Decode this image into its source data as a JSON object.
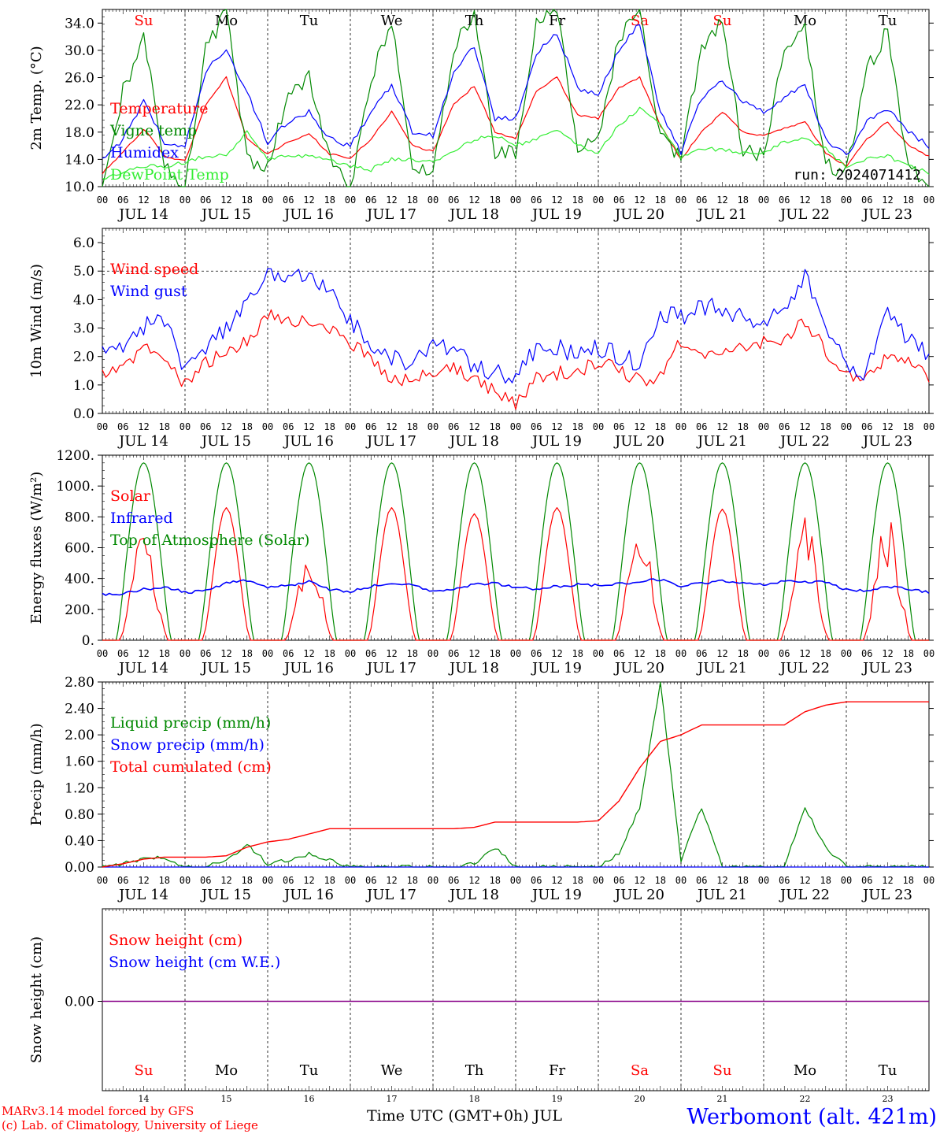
{
  "footer": {
    "credit_line1": "MARv3.14 model forced by GFS",
    "credit_line2": "(c) Lab. of Climatology, University of Liege",
    "xlabel": "Time UTC (GMT+0h) JUL",
    "station": "Werbomont (alt. 421m)"
  },
  "colors": {
    "red": "#ff0000",
    "green": "#008800",
    "blue": "#0000ff",
    "lightgreen": "#33ee33",
    "purple": "#880088"
  },
  "chart_data": [
    {
      "type": "line",
      "id": "temp",
      "ylabel": "2m Temp. (°C)",
      "ylim": [
        10,
        36
      ],
      "yticks": [
        "10.0",
        "14.0",
        "18.0",
        "22.0",
        "26.0",
        "30.0",
        "34.0"
      ],
      "annotation": "run: 2024071412",
      "day_labels": [
        "JUL 14",
        "JUL 15",
        "JUL 16",
        "JUL 17",
        "JUL 18",
        "JUL 19",
        "JUL 20",
        "JUL 21",
        "JUL 22",
        "JUL 23"
      ],
      "weekday_labels": [
        "Su",
        "Mo",
        "Tu",
        "We",
        "Th",
        "Fr",
        "Sa",
        "Su",
        "Mo",
        "Tu"
      ],
      "hour_labels": [
        "00",
        "06",
        "12",
        "18"
      ],
      "x_hours": [
        0,
        6,
        12,
        18,
        24,
        30,
        36,
        42,
        48,
        54,
        60,
        66,
        72,
        78,
        84,
        90,
        96,
        102,
        108,
        114,
        120,
        126,
        132,
        138,
        144,
        150,
        156,
        162,
        168,
        174,
        180,
        186,
        192,
        198,
        204,
        210,
        216,
        222,
        228,
        234,
        240
      ],
      "series": [
        {
          "name": "Temperature",
          "color": "#ff0000",
          "values": [
            12.0,
            15.0,
            18.5,
            14.5,
            13.8,
            22.0,
            26.0,
            17.0,
            14.8,
            16.5,
            17.8,
            14.8,
            14.2,
            17.0,
            21.0,
            16.0,
            15.2,
            22.0,
            24.8,
            18.0,
            17.0,
            24.0,
            26.0,
            20.5,
            20.0,
            24.5,
            26.0,
            19.0,
            14.0,
            18.0,
            21.0,
            18.0,
            17.5,
            18.5,
            19.5,
            15.0,
            13.0,
            17.0,
            19.5,
            16.0,
            14.5
          ]
        },
        {
          "name": "Vigne temp",
          "color": "#008800",
          "values": [
            10.0,
            24.0,
            32.0,
            13.0,
            10.0,
            30.0,
            36.0,
            14.0,
            13.0,
            24.0,
            26.0,
            14.0,
            10.0,
            26.0,
            34.0,
            13.0,
            12.0,
            30.0,
            36.0,
            15.0,
            15.0,
            34.0,
            36.0,
            16.0,
            17.0,
            32.0,
            36.0,
            18.0,
            14.0,
            30.0,
            34.0,
            15.0,
            15.0,
            30.0,
            33.0,
            13.0,
            12.0,
            27.0,
            33.0,
            13.0,
            10.5
          ]
        },
        {
          "name": "Humidex",
          "color": "#0000ff",
          "values": [
            13.8,
            17.0,
            22.5,
            16.5,
            16.0,
            27.0,
            30.0,
            24.0,
            16.5,
            19.5,
            21.0,
            17.0,
            16.0,
            21.0,
            25.0,
            18.0,
            17.5,
            27.0,
            30.5,
            20.0,
            20.0,
            29.5,
            32.5,
            24.5,
            23.5,
            30.0,
            34.0,
            21.0,
            15.0,
            23.0,
            25.5,
            22.5,
            21.0,
            23.0,
            25.0,
            17.0,
            14.5,
            19.5,
            21.5,
            18.0,
            16.0
          ]
        },
        {
          "name": "DewPoint Temp",
          "color": "#33ee33",
          "values": [
            11.0,
            12.0,
            13.0,
            13.0,
            13.5,
            14.5,
            14.5,
            18.0,
            14.0,
            14.5,
            14.5,
            14.0,
            13.0,
            12.5,
            14.0,
            14.0,
            13.5,
            15.0,
            17.0,
            17.5,
            16.0,
            17.0,
            18.5,
            16.0,
            15.0,
            19.0,
            21.5,
            19.0,
            14.2,
            15.5,
            15.5,
            14.8,
            15.0,
            16.5,
            17.0,
            15.5,
            13.0,
            14.0,
            14.5,
            13.0,
            12.0
          ]
        }
      ]
    },
    {
      "type": "line",
      "id": "wind",
      "ylabel": "10m Wind (m/s)",
      "ylim": [
        0,
        6.5
      ],
      "yticks": [
        "0.0",
        "1.0",
        "2.0",
        "3.0",
        "4.0",
        "5.0",
        "6.0"
      ],
      "day_labels": [
        "JUL 14",
        "JUL 15",
        "JUL 16",
        "JUL 17",
        "JUL 18",
        "JUL 19",
        "JUL 20",
        "JUL 21",
        "JUL 22",
        "JUL 23"
      ],
      "hour_labels": [
        "00",
        "06",
        "12",
        "18"
      ],
      "x_hours": [
        0,
        6,
        12,
        18,
        24,
        30,
        36,
        42,
        48,
        54,
        60,
        66,
        72,
        78,
        84,
        90,
        96,
        102,
        108,
        114,
        120,
        126,
        132,
        138,
        144,
        150,
        156,
        162,
        168,
        174,
        180,
        186,
        192,
        198,
        204,
        210,
        216,
        222,
        228,
        234,
        240
      ],
      "series": [
        {
          "name": "Wind speed",
          "color": "#ff0000",
          "values": [
            1.4,
            1.6,
            2.3,
            1.8,
            1.0,
            1.8,
            2.1,
            2.5,
            3.5,
            3.2,
            3.3,
            3.0,
            2.4,
            2.0,
            1.1,
            1.3,
            1.5,
            1.6,
            1.2,
            0.8,
            0.3,
            1.2,
            1.4,
            1.5,
            1.8,
            1.6,
            1.1,
            1.3,
            2.6,
            2.2,
            2.0,
            2.3,
            2.5,
            2.6,
            3.2,
            2.2,
            1.3,
            1.2,
            2.1,
            1.8,
            1.2
          ]
        },
        {
          "name": "Wind gust",
          "color": "#0000ff",
          "values": [
            2.1,
            2.3,
            3.1,
            3.2,
            1.5,
            2.4,
            3.0,
            3.9,
            4.9,
            4.7,
            4.8,
            4.2,
            3.3,
            2.3,
            1.9,
            1.8,
            2.5,
            2.2,
            1.6,
            1.4,
            1.4,
            2.2,
            2.3,
            2.0,
            2.3,
            2.0,
            1.8,
            3.6,
            3.4,
            3.8,
            3.7,
            3.4,
            3.1,
            3.8,
            4.8,
            3.1,
            1.6,
            1.5,
            3.7,
            2.6,
            2.0
          ]
        }
      ]
    },
    {
      "type": "line",
      "id": "energy",
      "ylabel": "Energy fluxes (W/m²)",
      "ylim": [
        0,
        1200
      ],
      "yticks": [
        "0.",
        "200.",
        "400.",
        "600.",
        "800.",
        "1000.",
        "1200."
      ],
      "day_labels": [
        "JUL 14",
        "JUL 15",
        "JUL 16",
        "JUL 17",
        "JUL 18",
        "JUL 19",
        "JUL 20",
        "JUL 21",
        "JUL 22",
        "JUL 23"
      ],
      "hour_labels": [
        "00",
        "06",
        "12",
        "18"
      ],
      "solar_peaks_wm2": [
        760,
        860,
        600,
        860,
        820,
        860,
        760,
        850,
        820,
        830
      ],
      "toa_peak_wm2": 1150,
      "series": [
        {
          "name": "Solar",
          "color": "#ff0000"
        },
        {
          "name": "Infrared",
          "color": "#0000ff",
          "values": [
            295,
            300,
            330,
            345,
            310,
            320,
            370,
            390,
            340,
            355,
            380,
            330,
            315,
            350,
            370,
            360,
            320,
            330,
            360,
            370,
            340,
            335,
            350,
            360,
            355,
            365,
            380,
            395,
            350,
            370,
            385,
            375,
            360,
            385,
            380,
            375,
            330,
            320,
            350,
            330,
            310
          ]
        },
        {
          "name": "Top of Atmosphere (Solar)",
          "color": "#008800"
        }
      ]
    },
    {
      "type": "line",
      "id": "precip",
      "ylabel": "Precip (mm/h)",
      "ylim": [
        0,
        2.8
      ],
      "yticks": [
        "0.00",
        "0.40",
        "0.80",
        "1.20",
        "1.60",
        "2.00",
        "2.40",
        "2.80"
      ],
      "day_labels": [
        "JUL 14",
        "JUL 15",
        "JUL 16",
        "JUL 17",
        "JUL 18",
        "JUL 19",
        "JUL 20",
        "JUL 21",
        "JUL 22",
        "JUL 23"
      ],
      "hour_labels": [
        "00",
        "06",
        "12",
        "18"
      ],
      "x_hours": [
        0,
        6,
        12,
        18,
        24,
        30,
        36,
        42,
        48,
        54,
        60,
        66,
        72,
        78,
        84,
        90,
        96,
        102,
        108,
        114,
        120,
        126,
        132,
        138,
        144,
        150,
        156,
        162,
        168,
        174,
        180,
        186,
        192,
        198,
        204,
        210,
        216,
        222,
        228,
        234,
        240
      ],
      "series": [
        {
          "name": "Liquid precip (mm/h)",
          "color": "#008800",
          "values": [
            0,
            0.05,
            0.12,
            0.15,
            0,
            0,
            0.1,
            0.35,
            0.05,
            0.1,
            0.2,
            0.1,
            0,
            0,
            0,
            0,
            0,
            0,
            0.05,
            0.3,
            0,
            0,
            0,
            0,
            0,
            0.2,
            0.9,
            2.8,
            0.1,
            0.9,
            0,
            0,
            0,
            0,
            0.9,
            0.3,
            0,
            0,
            0,
            0,
            0
          ]
        },
        {
          "name": "Snow precip (mm/h)",
          "color": "#0000ff",
          "values": [
            0,
            0,
            0,
            0,
            0,
            0,
            0,
            0,
            0,
            0,
            0,
            0,
            0,
            0,
            0,
            0,
            0,
            0,
            0,
            0,
            0,
            0,
            0,
            0,
            0,
            0,
            0,
            0,
            0,
            0,
            0,
            0,
            0,
            0,
            0,
            0,
            0,
            0,
            0,
            0,
            0
          ]
        },
        {
          "name": "Total cumulated (cm)",
          "color": "#ff0000",
          "values": [
            0,
            0.05,
            0.12,
            0.15,
            0.15,
            0.15,
            0.17,
            0.3,
            0.38,
            0.42,
            0.5,
            0.58,
            0.58,
            0.58,
            0.58,
            0.58,
            0.58,
            0.58,
            0.6,
            0.68,
            0.68,
            0.68,
            0.68,
            0.68,
            0.7,
            1.0,
            1.5,
            1.9,
            2.0,
            2.15,
            2.15,
            2.15,
            2.15,
            2.15,
            2.35,
            2.45,
            2.5,
            2.5,
            2.5,
            2.5,
            2.5
          ]
        }
      ]
    },
    {
      "type": "line",
      "id": "snow",
      "ylabel": "Snow height (cm)",
      "yticks": [
        "0.00"
      ],
      "weekday_labels": [
        "Su",
        "Mo",
        "Tu",
        "We",
        "Th",
        "Fr",
        "Sa",
        "Su",
        "Mo",
        "Tu"
      ],
      "day_numbers": [
        "14",
        "15",
        "16",
        "17",
        "18",
        "19",
        "20",
        "21",
        "22",
        "23"
      ],
      "series": [
        {
          "name": "Snow height (cm)",
          "color": "#ff0000",
          "values": [
            0,
            0
          ]
        },
        {
          "name": "Snow height (cm W.E.)",
          "color": "#0000ff",
          "values": [
            0,
            0
          ]
        }
      ]
    }
  ]
}
